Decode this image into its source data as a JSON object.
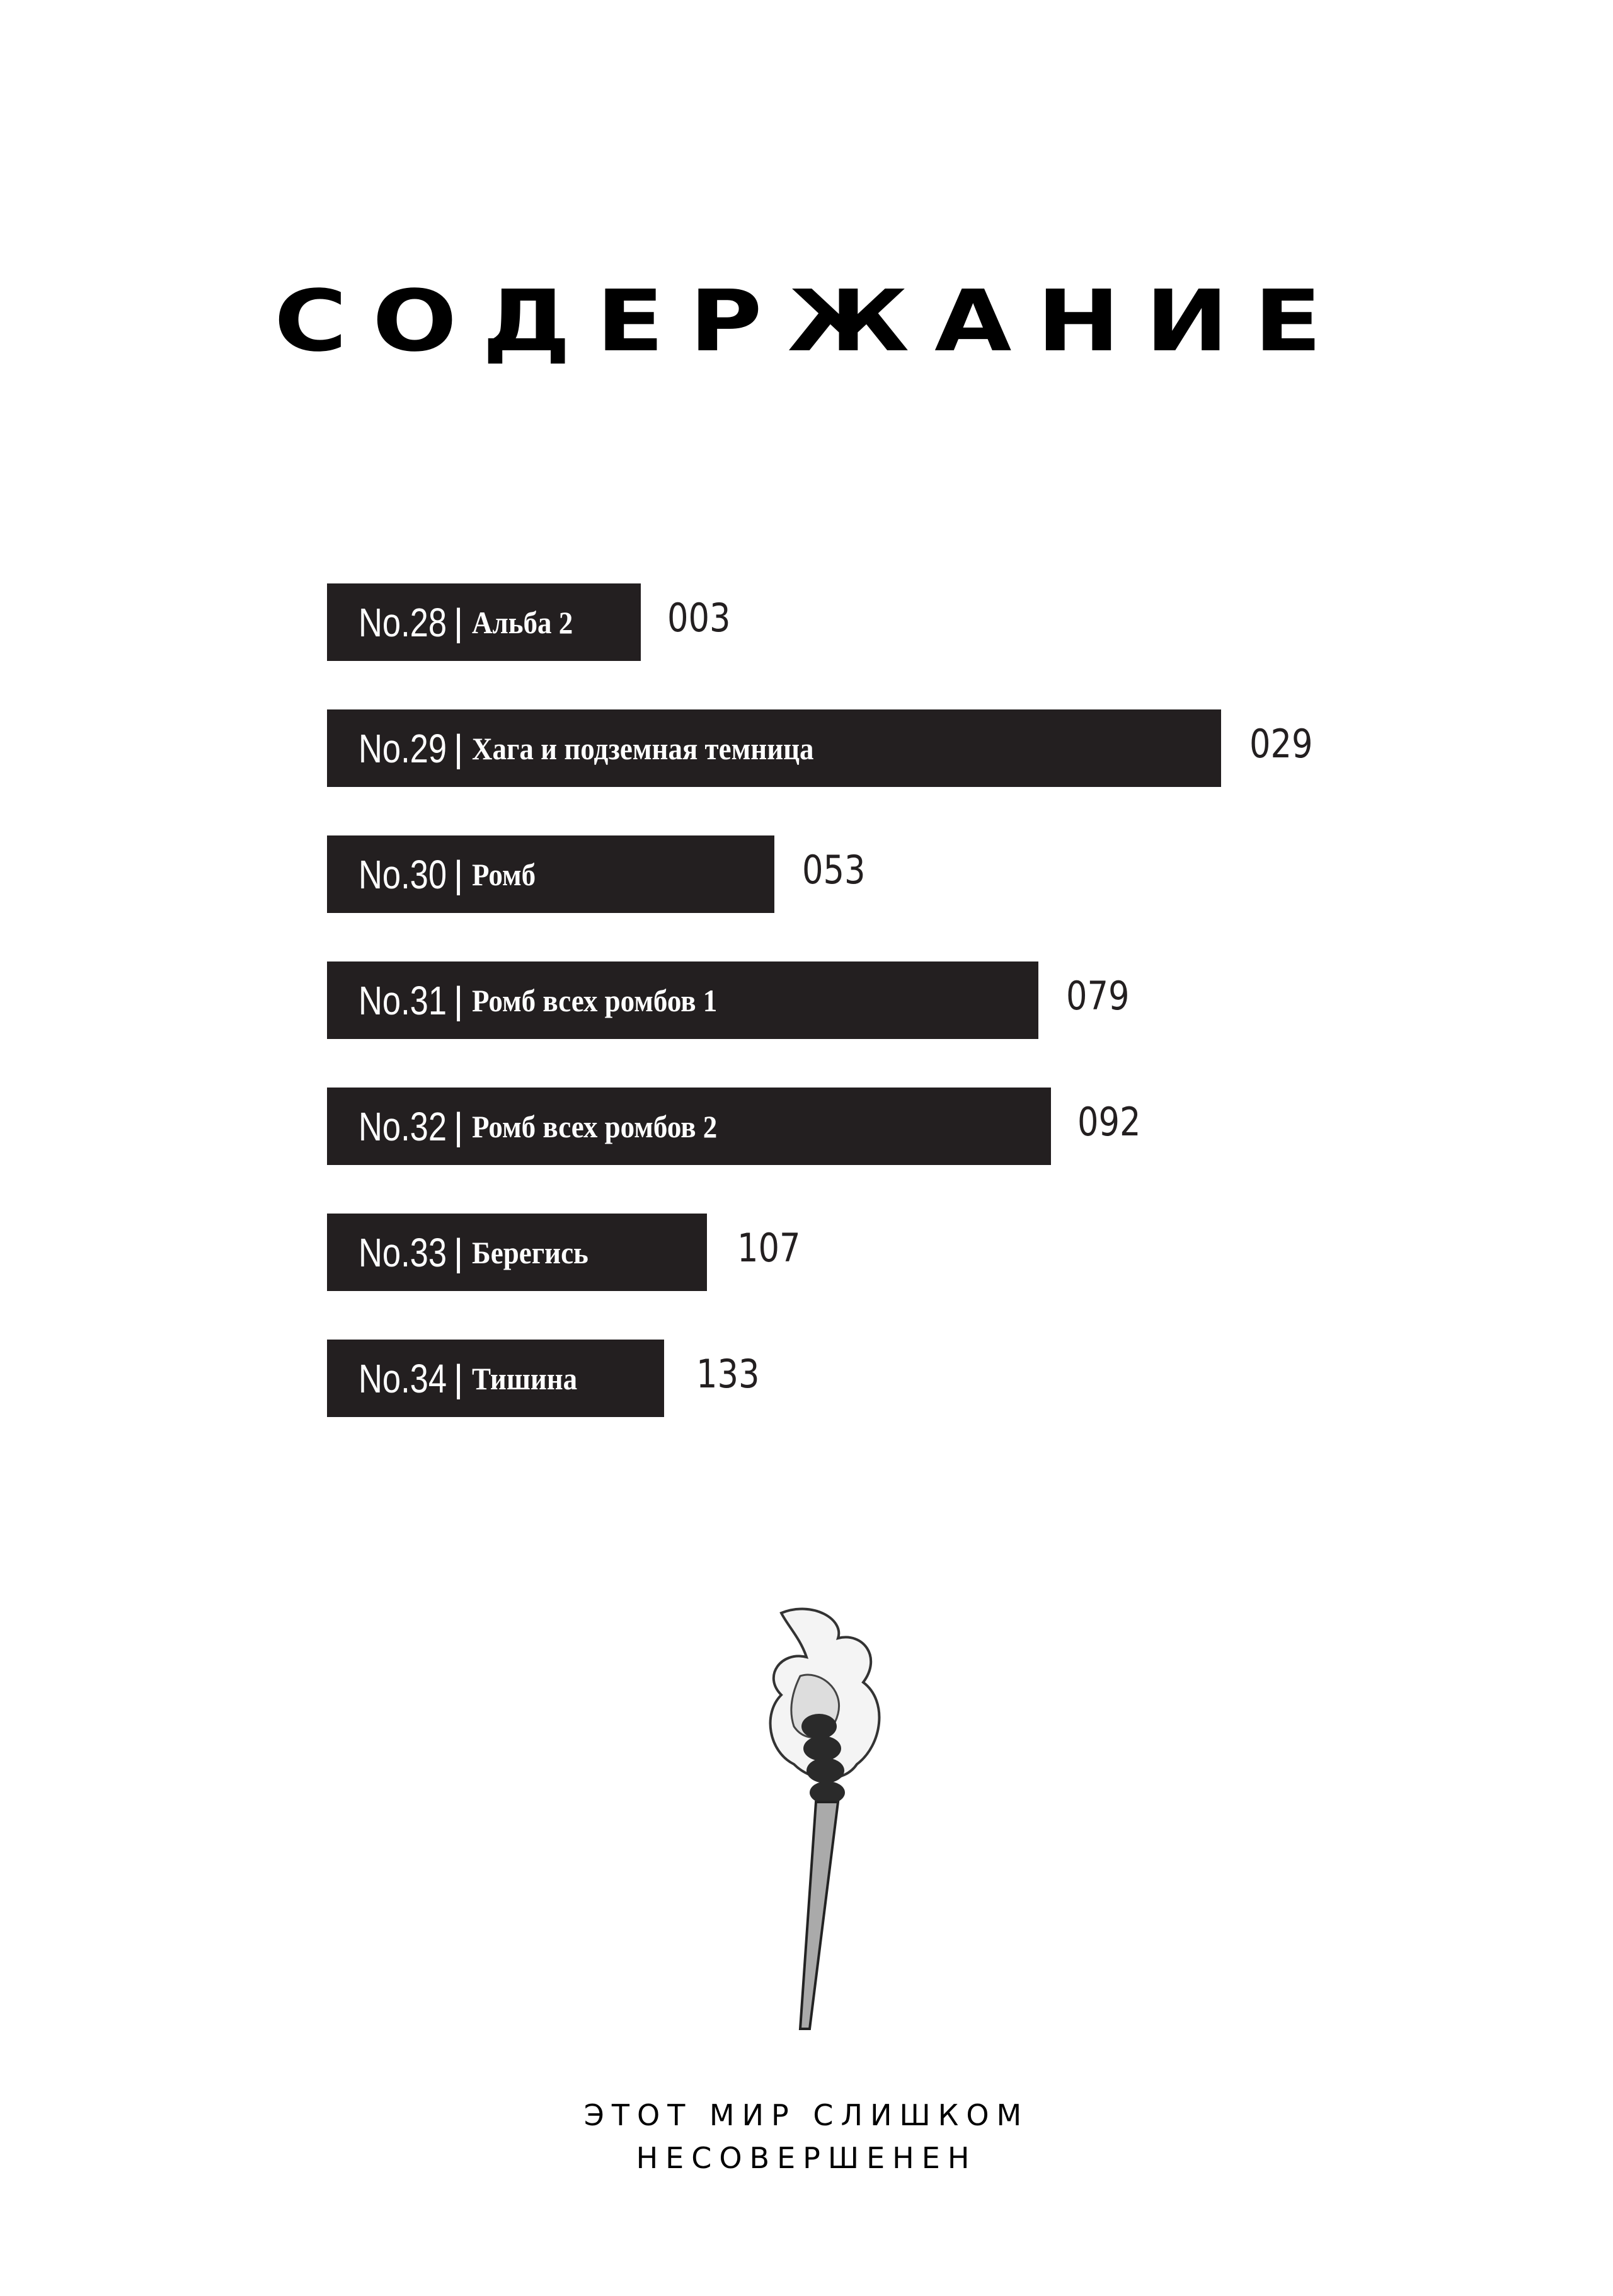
{
  "title": "СОДЕРЖАНИЕ",
  "toc": [
    {
      "number": "No.28",
      "name": "Альба 2",
      "page": "003"
    },
    {
      "number": "No.29",
      "name": "Хага и подземная темница",
      "page": "029"
    },
    {
      "number": "No.30",
      "name": "Ромб",
      "page": "053"
    },
    {
      "number": "No.31",
      "name": "Ромб всех ромбов 1",
      "page": "079"
    },
    {
      "number": "No.32",
      "name": "Ромб всех ромбов 2",
      "page": "092"
    },
    {
      "number": "No.33",
      "name": "Берегись",
      "page": "107"
    },
    {
      "number": "No.34",
      "name": "Тишина",
      "page": "133"
    }
  ],
  "separator": "|",
  "illustration": "torch-illustration",
  "motto": {
    "line1": "ЭТОТ МИР СЛИШКОМ",
    "line2": "НЕСОВЕРШЕНЕН"
  },
  "colors": {
    "bar": "#231f20",
    "text": "#ffffff"
  }
}
